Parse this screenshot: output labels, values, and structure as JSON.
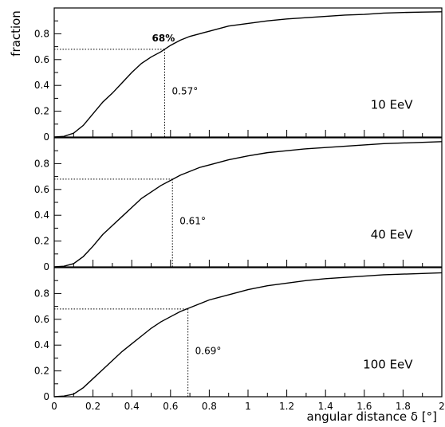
{
  "chart_data": {
    "type": "line",
    "ylabel": "fraction",
    "xlabel": "angular distance δ [°]",
    "xlim": [
      0,
      2
    ],
    "ylim": [
      0,
      1
    ],
    "x_ticks": [
      "0",
      "0.2",
      "0.4",
      "0.6",
      "0.8",
      "1",
      "1.2",
      "1.4",
      "1.6",
      "1.8",
      "2"
    ],
    "y_ticks": [
      "0",
      "0.2",
      "0.4",
      "0.6",
      "0.8"
    ],
    "grid": false,
    "threshold_fraction": 0.68,
    "threshold_label": "68%",
    "panels": [
      {
        "label": "10 EeV",
        "marker_x": 0.57,
        "marker_label": "0.57°",
        "x": [
          0,
          0.05,
          0.1,
          0.15,
          0.2,
          0.25,
          0.3,
          0.35,
          0.4,
          0.45,
          0.5,
          0.55,
          0.6,
          0.65,
          0.7,
          0.75,
          0.8,
          0.9,
          1.0,
          1.1,
          1.2,
          1.3,
          1.4,
          1.5,
          1.6,
          1.7,
          1.8,
          1.9,
          2.0
        ],
        "y": [
          0,
          0.005,
          0.03,
          0.09,
          0.18,
          0.27,
          0.34,
          0.42,
          0.5,
          0.57,
          0.62,
          0.66,
          0.71,
          0.75,
          0.78,
          0.8,
          0.82,
          0.86,
          0.88,
          0.9,
          0.915,
          0.925,
          0.935,
          0.945,
          0.95,
          0.96,
          0.965,
          0.968,
          0.97
        ]
      },
      {
        "label": "40 EeV",
        "marker_x": 0.61,
        "marker_label": "0.61°",
        "x": [
          0,
          0.05,
          0.1,
          0.15,
          0.2,
          0.25,
          0.3,
          0.35,
          0.4,
          0.45,
          0.5,
          0.55,
          0.6,
          0.65,
          0.7,
          0.75,
          0.8,
          0.9,
          1.0,
          1.1,
          1.2,
          1.3,
          1.4,
          1.5,
          1.6,
          1.7,
          1.8,
          1.9,
          2.0
        ],
        "y": [
          0,
          0.005,
          0.025,
          0.08,
          0.16,
          0.25,
          0.32,
          0.39,
          0.46,
          0.53,
          0.58,
          0.63,
          0.67,
          0.71,
          0.74,
          0.77,
          0.79,
          0.83,
          0.86,
          0.885,
          0.9,
          0.915,
          0.925,
          0.935,
          0.945,
          0.955,
          0.96,
          0.965,
          0.97
        ]
      },
      {
        "label": "100 EeV",
        "marker_x": 0.69,
        "marker_label": "0.69°",
        "x": [
          0,
          0.05,
          0.1,
          0.15,
          0.2,
          0.25,
          0.3,
          0.35,
          0.4,
          0.45,
          0.5,
          0.55,
          0.6,
          0.65,
          0.7,
          0.75,
          0.8,
          0.9,
          1.0,
          1.1,
          1.2,
          1.3,
          1.4,
          1.5,
          1.6,
          1.7,
          1.8,
          1.9,
          2.0
        ],
        "y": [
          0,
          0.005,
          0.02,
          0.07,
          0.14,
          0.21,
          0.28,
          0.35,
          0.41,
          0.47,
          0.53,
          0.58,
          0.62,
          0.66,
          0.69,
          0.72,
          0.75,
          0.79,
          0.83,
          0.86,
          0.88,
          0.9,
          0.915,
          0.925,
          0.935,
          0.945,
          0.95,
          0.955,
          0.96
        ]
      }
    ]
  }
}
